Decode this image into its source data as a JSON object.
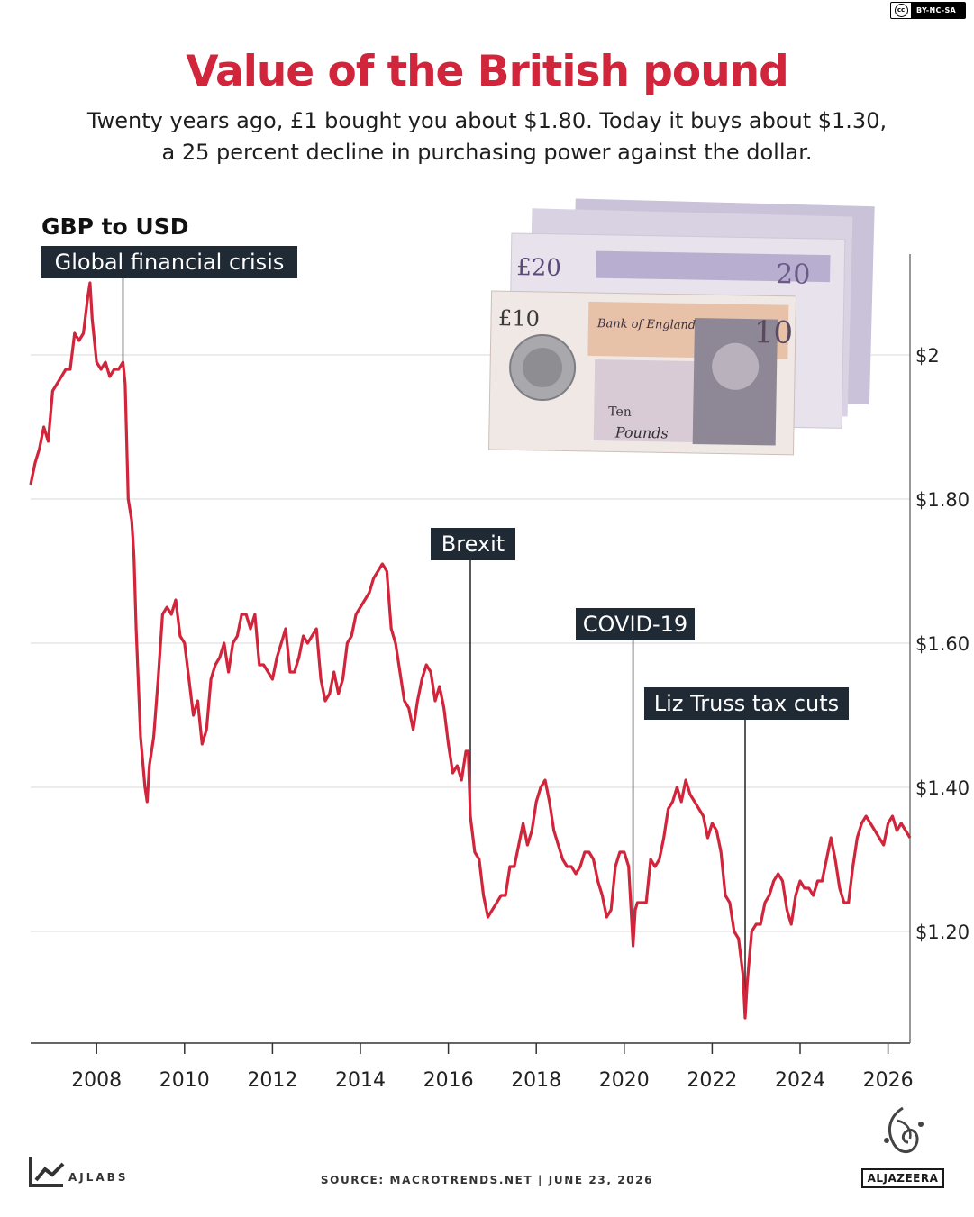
{
  "license": {
    "cc": "cc",
    "text": "BY-NC-SA"
  },
  "header": {
    "title": "Value of the British pound",
    "subtitle_lines": [
      "Twenty years ago, £1 bought you about $1.80. Today it buys about $1.30,",
      "a 25 percent decline in purchasing power against the dollar."
    ]
  },
  "footer": {
    "logo_label": "AJLABS",
    "source": "SOURCE: MACROTRENDS.NET | JUNE 23, 2026",
    "brand": "ALJAZEERA"
  },
  "banknotes": {
    "denominations": [
      "£20",
      "£10",
      "10",
      "20"
    ],
    "bank": "Bank of England",
    "ten": "Ten",
    "pounds": "Pounds"
  },
  "colors": {
    "accent": "#d0253b",
    "line": "#d0253b",
    "callout_bg": "#1f2a35",
    "grid": "#d9d9d9"
  },
  "chart_data": {
    "type": "line",
    "title": "GBP to USD",
    "x_axis": {
      "range": [
        2006.5,
        2026.5
      ],
      "ticks": [
        2008,
        2010,
        2012,
        2014,
        2016,
        2018,
        2020,
        2022,
        2024,
        2026
      ]
    },
    "y_axis": {
      "range": [
        1.045,
        2.14
      ],
      "ticks": [
        1.2,
        1.4,
        1.6,
        1.8,
        2.0
      ],
      "tick_labels": [
        "$1.20",
        "$1.40",
        "$1.60",
        "$1.80",
        "$2"
      ],
      "position": "right"
    },
    "grid": true,
    "series": [
      {
        "points": [
          [
            2006.5,
            1.82
          ],
          [
            2006.6,
            1.85
          ],
          [
            2006.7,
            1.87
          ],
          [
            2006.8,
            1.9
          ],
          [
            2006.9,
            1.88
          ],
          [
            2007.0,
            1.95
          ],
          [
            2007.1,
            1.96
          ],
          [
            2007.2,
            1.97
          ],
          [
            2007.3,
            1.98
          ],
          [
            2007.4,
            1.98
          ],
          [
            2007.5,
            2.03
          ],
          [
            2007.6,
            2.02
          ],
          [
            2007.7,
            2.03
          ],
          [
            2007.8,
            2.08
          ],
          [
            2007.85,
            2.1
          ],
          [
            2007.9,
            2.05
          ],
          [
            2008.0,
            1.99
          ],
          [
            2008.1,
            1.98
          ],
          [
            2008.2,
            1.99
          ],
          [
            2008.3,
            1.97
          ],
          [
            2008.4,
            1.98
          ],
          [
            2008.5,
            1.98
          ],
          [
            2008.6,
            1.99
          ],
          [
            2008.65,
            1.96
          ],
          [
            2008.72,
            1.8
          ],
          [
            2008.8,
            1.77
          ],
          [
            2008.85,
            1.72
          ],
          [
            2008.9,
            1.62
          ],
          [
            2009.0,
            1.47
          ],
          [
            2009.1,
            1.4
          ],
          [
            2009.15,
            1.38
          ],
          [
            2009.2,
            1.43
          ],
          [
            2009.3,
            1.47
          ],
          [
            2009.4,
            1.55
          ],
          [
            2009.5,
            1.64
          ],
          [
            2009.6,
            1.65
          ],
          [
            2009.7,
            1.64
          ],
          [
            2009.8,
            1.66
          ],
          [
            2009.9,
            1.61
          ],
          [
            2010.0,
            1.6
          ],
          [
            2010.1,
            1.55
          ],
          [
            2010.2,
            1.5
          ],
          [
            2010.3,
            1.52
          ],
          [
            2010.4,
            1.46
          ],
          [
            2010.5,
            1.48
          ],
          [
            2010.6,
            1.55
          ],
          [
            2010.7,
            1.57
          ],
          [
            2010.8,
            1.58
          ],
          [
            2010.9,
            1.6
          ],
          [
            2011.0,
            1.56
          ],
          [
            2011.1,
            1.6
          ],
          [
            2011.2,
            1.61
          ],
          [
            2011.3,
            1.64
          ],
          [
            2011.4,
            1.64
          ],
          [
            2011.5,
            1.62
          ],
          [
            2011.6,
            1.64
          ],
          [
            2011.7,
            1.57
          ],
          [
            2011.8,
            1.57
          ],
          [
            2011.9,
            1.56
          ],
          [
            2012.0,
            1.55
          ],
          [
            2012.1,
            1.58
          ],
          [
            2012.2,
            1.6
          ],
          [
            2012.3,
            1.62
          ],
          [
            2012.4,
            1.56
          ],
          [
            2012.5,
            1.56
          ],
          [
            2012.6,
            1.58
          ],
          [
            2012.7,
            1.61
          ],
          [
            2012.8,
            1.6
          ],
          [
            2012.9,
            1.61
          ],
          [
            2013.0,
            1.62
          ],
          [
            2013.1,
            1.55
          ],
          [
            2013.2,
            1.52
          ],
          [
            2013.3,
            1.53
          ],
          [
            2013.4,
            1.56
          ],
          [
            2013.5,
            1.53
          ],
          [
            2013.6,
            1.55
          ],
          [
            2013.7,
            1.6
          ],
          [
            2013.8,
            1.61
          ],
          [
            2013.9,
            1.64
          ],
          [
            2014.0,
            1.65
          ],
          [
            2014.1,
            1.66
          ],
          [
            2014.2,
            1.67
          ],
          [
            2014.3,
            1.69
          ],
          [
            2014.4,
            1.7
          ],
          [
            2014.5,
            1.71
          ],
          [
            2014.6,
            1.7
          ],
          [
            2014.7,
            1.62
          ],
          [
            2014.8,
            1.6
          ],
          [
            2014.9,
            1.56
          ],
          [
            2015.0,
            1.52
          ],
          [
            2015.1,
            1.51
          ],
          [
            2015.2,
            1.48
          ],
          [
            2015.3,
            1.52
          ],
          [
            2015.4,
            1.55
          ],
          [
            2015.5,
            1.57
          ],
          [
            2015.6,
            1.56
          ],
          [
            2015.7,
            1.52
          ],
          [
            2015.8,
            1.54
          ],
          [
            2015.9,
            1.51
          ],
          [
            2016.0,
            1.46
          ],
          [
            2016.1,
            1.42
          ],
          [
            2016.2,
            1.43
          ],
          [
            2016.3,
            1.41
          ],
          [
            2016.4,
            1.45
          ],
          [
            2016.45,
            1.45
          ],
          [
            2016.5,
            1.36
          ],
          [
            2016.6,
            1.31
          ],
          [
            2016.7,
            1.3
          ],
          [
            2016.8,
            1.25
          ],
          [
            2016.9,
            1.22
          ],
          [
            2017.0,
            1.23
          ],
          [
            2017.1,
            1.24
          ],
          [
            2017.2,
            1.25
          ],
          [
            2017.3,
            1.25
          ],
          [
            2017.4,
            1.29
          ],
          [
            2017.5,
            1.29
          ],
          [
            2017.6,
            1.32
          ],
          [
            2017.7,
            1.35
          ],
          [
            2017.8,
            1.32
          ],
          [
            2017.9,
            1.34
          ],
          [
            2018.0,
            1.38
          ],
          [
            2018.1,
            1.4
          ],
          [
            2018.2,
            1.41
          ],
          [
            2018.3,
            1.38
          ],
          [
            2018.4,
            1.34
          ],
          [
            2018.5,
            1.32
          ],
          [
            2018.6,
            1.3
          ],
          [
            2018.7,
            1.29
          ],
          [
            2018.8,
            1.29
          ],
          [
            2018.9,
            1.28
          ],
          [
            2019.0,
            1.29
          ],
          [
            2019.1,
            1.31
          ],
          [
            2019.2,
            1.31
          ],
          [
            2019.3,
            1.3
          ],
          [
            2019.4,
            1.27
          ],
          [
            2019.5,
            1.25
          ],
          [
            2019.6,
            1.22
          ],
          [
            2019.7,
            1.23
          ],
          [
            2019.8,
            1.29
          ],
          [
            2019.9,
            1.31
          ],
          [
            2020.0,
            1.31
          ],
          [
            2020.1,
            1.29
          ],
          [
            2020.2,
            1.18
          ],
          [
            2020.25,
            1.23
          ],
          [
            2020.3,
            1.24
          ],
          [
            2020.4,
            1.24
          ],
          [
            2020.5,
            1.24
          ],
          [
            2020.6,
            1.3
          ],
          [
            2020.7,
            1.29
          ],
          [
            2020.8,
            1.3
          ],
          [
            2020.9,
            1.33
          ],
          [
            2021.0,
            1.37
          ],
          [
            2021.1,
            1.38
          ],
          [
            2021.2,
            1.4
          ],
          [
            2021.3,
            1.38
          ],
          [
            2021.4,
            1.41
          ],
          [
            2021.5,
            1.39
          ],
          [
            2021.6,
            1.38
          ],
          [
            2021.7,
            1.37
          ],
          [
            2021.8,
            1.36
          ],
          [
            2021.9,
            1.33
          ],
          [
            2022.0,
            1.35
          ],
          [
            2022.1,
            1.34
          ],
          [
            2022.2,
            1.31
          ],
          [
            2022.3,
            1.25
          ],
          [
            2022.4,
            1.24
          ],
          [
            2022.5,
            1.2
          ],
          [
            2022.6,
            1.19
          ],
          [
            2022.7,
            1.14
          ],
          [
            2022.75,
            1.08
          ],
          [
            2022.8,
            1.13
          ],
          [
            2022.9,
            1.2
          ],
          [
            2023.0,
            1.21
          ],
          [
            2023.1,
            1.21
          ],
          [
            2023.2,
            1.24
          ],
          [
            2023.3,
            1.25
          ],
          [
            2023.4,
            1.27
          ],
          [
            2023.5,
            1.28
          ],
          [
            2023.6,
            1.27
          ],
          [
            2023.7,
            1.23
          ],
          [
            2023.8,
            1.21
          ],
          [
            2023.9,
            1.25
          ],
          [
            2024.0,
            1.27
          ],
          [
            2024.1,
            1.26
          ],
          [
            2024.2,
            1.26
          ],
          [
            2024.3,
            1.25
          ],
          [
            2024.4,
            1.27
          ],
          [
            2024.5,
            1.27
          ],
          [
            2024.6,
            1.3
          ],
          [
            2024.7,
            1.33
          ],
          [
            2024.8,
            1.3
          ],
          [
            2024.9,
            1.26
          ],
          [
            2025.0,
            1.24
          ],
          [
            2025.1,
            1.24
          ],
          [
            2025.2,
            1.29
          ],
          [
            2025.3,
            1.33
          ],
          [
            2025.4,
            1.35
          ],
          [
            2025.5,
            1.36
          ],
          [
            2025.6,
            1.35
          ],
          [
            2025.7,
            1.34
          ],
          [
            2025.8,
            1.33
          ],
          [
            2025.9,
            1.32
          ],
          [
            2026.0,
            1.35
          ],
          [
            2026.1,
            1.36
          ],
          [
            2026.2,
            1.34
          ],
          [
            2026.3,
            1.35
          ],
          [
            2026.4,
            1.34
          ],
          [
            2026.5,
            1.33
          ]
        ]
      }
    ],
    "annotations": [
      {
        "label": "Global financial crisis",
        "x": 2008.6,
        "value": 1.99
      },
      {
        "label": "Brexit",
        "x": 2016.5,
        "value": 1.36
      },
      {
        "label": "COVID-19",
        "x": 2020.2,
        "value": 1.18
      },
      {
        "label": "Liz Truss tax cuts",
        "x": 2022.75,
        "value": 1.08
      }
    ]
  }
}
